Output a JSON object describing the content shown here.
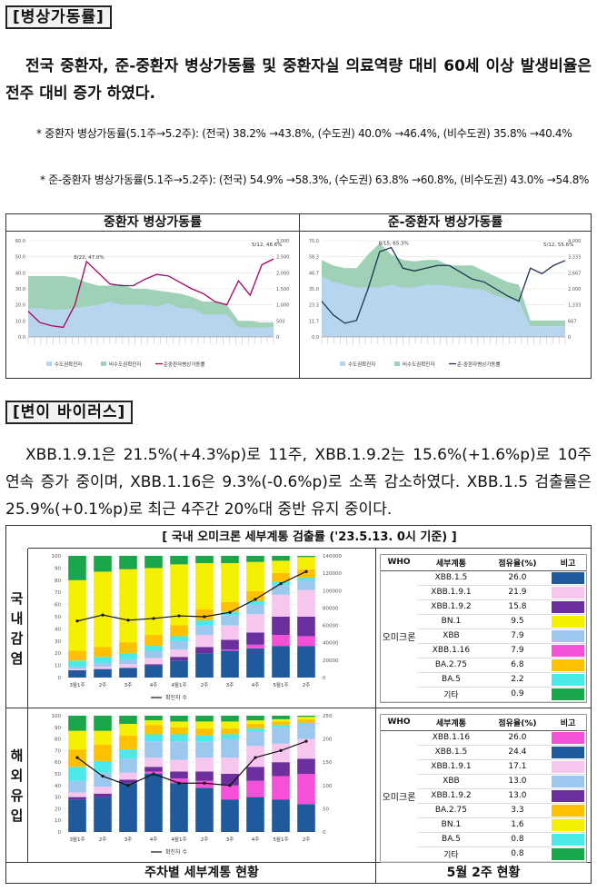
{
  "section1": {
    "header": "[병상가동률]",
    "paragraph": "전국 중환자, 준-중환자 병상가동률 및 중환자실 의료역량 대비 60세 이상 발생비율은 전주 대비 증가 하였다.",
    "bullet1": "* 중환자 병상가동률(5.1주→5.2주): (전국) 38.2% →43.8%, (수도권) 40.0% →46.4%, (비수도권) 35.8% →40.4%",
    "bullet2": "* 준-중환자 병상가동률(5.1주→5.2주): (전국) 54.9% →58.3%, (수도권) 63.8% →60.8%, (비수도권) 43.0% →54.8%",
    "chart_titles": [
      "중환자 병상가동률",
      "준-중환자 병상가동률"
    ]
  },
  "section2": {
    "header": "[변이 바이러스]",
    "paragraph": "XBB.1.9.1은 21.5%(+4.3%p)로 11주, XBB.1.9.2는 15.6%(+1.6%p)로 10주연속 증가 중이며, XBB.1.16은 9.3%(-0.6%p)로 소폭 감소하였다. XBB.1.5 검출률은 25.9%(+0.1%p)로 최근 4주간 20%대 중반 유지 중이다."
  },
  "variant_table": {
    "title": "[ 국내 오미크론 세부계통 검출률 ('23.5.13. 0시 기준) ]",
    "row_labels": [
      "국내감염",
      "해외유입"
    ],
    "footer_left": "주차별 세부계통 현황",
    "footer_right": "5월 2주 현황",
    "who_headers": [
      "WHO",
      "세부계통",
      "점유율(%)",
      "비고"
    ],
    "group_label": "오미크론",
    "domestic": [
      {
        "name": "XBB.1.5",
        "share": "26.0",
        "color": "#1f5a9c"
      },
      {
        "name": "XBB.1.9.1",
        "share": "21.9",
        "color": "#f6c6ee"
      },
      {
        "name": "XBB.1.9.2",
        "share": "15.8",
        "color": "#6b2f9e"
      },
      {
        "name": "BN.1",
        "share": "9.5",
        "color": "#f4f000"
      },
      {
        "name": "XBB",
        "share": "7.9",
        "color": "#9cc8f0"
      },
      {
        "name": "XBB.1.16",
        "share": "7.9",
        "color": "#f550d8"
      },
      {
        "name": "BA.2.75",
        "share": "6.8",
        "color": "#ffc000"
      },
      {
        "name": "BA.5",
        "share": "2.2",
        "color": "#4de8e8"
      },
      {
        "name": "기타",
        "share": "0.9",
        "color": "#1aa64a"
      }
    ],
    "overseas": [
      {
        "name": "XBB.1.16",
        "share": "26.0",
        "color": "#f550d8"
      },
      {
        "name": "XBB.1.5",
        "share": "24.4",
        "color": "#1f5a9c"
      },
      {
        "name": "XBB.1.9.1",
        "share": "17.1",
        "color": "#f6c6ee"
      },
      {
        "name": "XBB",
        "share": "13.0",
        "color": "#9cc8f0"
      },
      {
        "name": "XBB.1.9.2",
        "share": "13.0",
        "color": "#6b2f9e"
      },
      {
        "name": "BA.2.75",
        "share": "3.3",
        "color": "#ffc000"
      },
      {
        "name": "BN.1",
        "share": "1.6",
        "color": "#f4f000"
      },
      {
        "name": "BA.5",
        "share": "0.8",
        "color": "#4de8e8"
      },
      {
        "name": "기타",
        "share": "0.8",
        "color": "#1aa64a"
      }
    ]
  },
  "chart_data": [
    {
      "type": "area",
      "title": "중환자 병상가동률",
      "ylim": [
        0,
        60
      ],
      "y2lim": [
        0,
        3000
      ],
      "annotations": [
        "8/22, 47.0%",
        "5/12, 48.6%"
      ],
      "legend": [
        "수도권확진자",
        "비수도권확진자",
        "준중환자병상가동률"
      ],
      "series": [
        {
          "name": "수도권확진자",
          "values": [
            18,
            18,
            17,
            17,
            18,
            19,
            20,
            22,
            20,
            20,
            20,
            19,
            21,
            18,
            18,
            14,
            14,
            14,
            6,
            6,
            6,
            6
          ]
        },
        {
          "name": "비수도권확진자",
          "values": [
            38,
            38,
            38,
            38,
            37,
            34,
            32,
            32,
            33,
            30,
            30,
            29,
            28,
            27,
            25,
            22,
            22,
            20,
            10,
            10,
            9,
            9
          ]
        },
        {
          "name": "준중환자병상가동률",
          "values": [
            16,
            9,
            7,
            6,
            20,
            47,
            40,
            33,
            32,
            32,
            36,
            39,
            38,
            34,
            30,
            27,
            22,
            20,
            35,
            26,
            45,
            48.6
          ]
        }
      ]
    },
    {
      "type": "area",
      "title": "준-중환자 병상가동률",
      "ylim": [
        0,
        70
      ],
      "y2lim": [
        0,
        4000
      ],
      "annotations": [
        "8/15, 65.3%",
        "5/12, 55.6%"
      ],
      "legend": [
        "수도권확진자",
        "비수도권확진자",
        "준-중환자병상가동률"
      ],
      "series": [
        {
          "name": "수도권확진자",
          "values": [
            44,
            40,
            38,
            36,
            36,
            36,
            38,
            36,
            36,
            38,
            38,
            37,
            36,
            35,
            34,
            30,
            28,
            26,
            8,
            8,
            8,
            8
          ]
        },
        {
          "name": "비수도권확진자",
          "values": [
            56,
            52,
            50,
            50,
            60,
            68,
            60,
            56,
            55,
            56,
            56,
            52,
            52,
            52,
            48,
            44,
            40,
            38,
            12,
            12,
            12,
            12
          ]
        },
        {
          "name": "준-중환자병상가동률",
          "values": [
            26,
            16,
            10,
            12,
            35,
            62,
            65,
            50,
            48,
            50,
            52,
            52,
            47,
            42,
            40,
            35,
            30,
            26,
            50,
            46,
            52,
            55.6
          ]
        }
      ]
    },
    {
      "type": "bar",
      "title": "국내감염",
      "categories": [
        "3월1주",
        "2주",
        "3주",
        "4주",
        "4월1주",
        "2주",
        "3주",
        "4주",
        "5월1주",
        "2주"
      ],
      "ylim": [
        0,
        100
      ],
      "y2lim": [
        0,
        140000
      ],
      "line_series": {
        "name": "확진자 수",
        "values": [
          65000,
          72000,
          66000,
          68000,
          71000,
          70000,
          75000,
          90000,
          108000,
          122000
        ]
      },
      "stack_order": [
        "XBB.1.5",
        "XBB.1.16",
        "XBB.1.9.2",
        "XBB.1.9.1",
        "XBB",
        "BA.5",
        "BA.2.75",
        "BN.1",
        "기타"
      ],
      "stacks": [
        [
          6,
          0,
          0,
          1,
          2,
          5,
          8,
          58,
          20
        ],
        [
          7,
          0,
          0,
          2,
          3,
          5,
          8,
          62,
          13
        ],
        [
          8,
          0,
          0,
          3,
          4,
          5,
          9,
          60,
          11
        ],
        [
          10,
          0,
          1,
          5,
          6,
          4,
          9,
          55,
          10
        ],
        [
          14,
          0,
          3,
          6,
          7,
          4,
          9,
          50,
          7
        ],
        [
          20,
          0,
          5,
          10,
          8,
          4,
          9,
          38,
          6
        ],
        [
          22,
          1,
          8,
          12,
          8,
          3,
          8,
          32,
          6
        ],
        [
          24,
          3,
          10,
          15,
          8,
          3,
          8,
          24,
          5
        ],
        [
          26,
          9,
          15,
          18,
          8,
          3,
          7,
          10,
          4
        ],
        [
          26,
          8,
          16,
          22,
          8,
          2,
          7,
          10,
          1
        ]
      ]
    },
    {
      "type": "bar",
      "title": "해외유입",
      "categories": [
        "3월1주",
        "2주",
        "3주",
        "4주",
        "4월1주",
        "2주",
        "3주",
        "4주",
        "5월1주",
        "2주"
      ],
      "ylim": [
        0,
        100
      ],
      "y2lim": [
        0,
        250
      ],
      "line_series": {
        "name": "확진자 수",
        "values": [
          160,
          120,
          100,
          125,
          105,
          105,
          100,
          160,
          175,
          195
        ]
      },
      "stack_order": [
        "XBB.1.5",
        "XBB.1.16",
        "XBB.1.9.2",
        "XBB.1.9.1",
        "XBB",
        "BA.5",
        "BA.2.75",
        "BN.1",
        "기타"
      ],
      "stacks": [
        [
          28,
          0,
          2,
          4,
          10,
          12,
          15,
          16,
          13
        ],
        [
          30,
          0,
          3,
          6,
          12,
          10,
          14,
          12,
          13
        ],
        [
          42,
          0,
          3,
          6,
          12,
          8,
          12,
          10,
          7
        ],
        [
          50,
          2,
          4,
          8,
          14,
          6,
          8,
          4,
          4
        ],
        [
          42,
          4,
          6,
          10,
          16,
          6,
          6,
          5,
          5
        ],
        [
          38,
          6,
          8,
          12,
          14,
          5,
          6,
          6,
          5
        ],
        [
          28,
          12,
          10,
          14,
          16,
          4,
          5,
          6,
          5
        ],
        [
          30,
          14,
          12,
          18,
          12,
          3,
          4,
          3,
          4
        ],
        [
          28,
          20,
          12,
          16,
          14,
          2,
          3,
          2,
          3
        ],
        [
          24,
          26,
          13,
          17,
          13,
          1,
          3,
          2,
          1
        ]
      ]
    }
  ]
}
